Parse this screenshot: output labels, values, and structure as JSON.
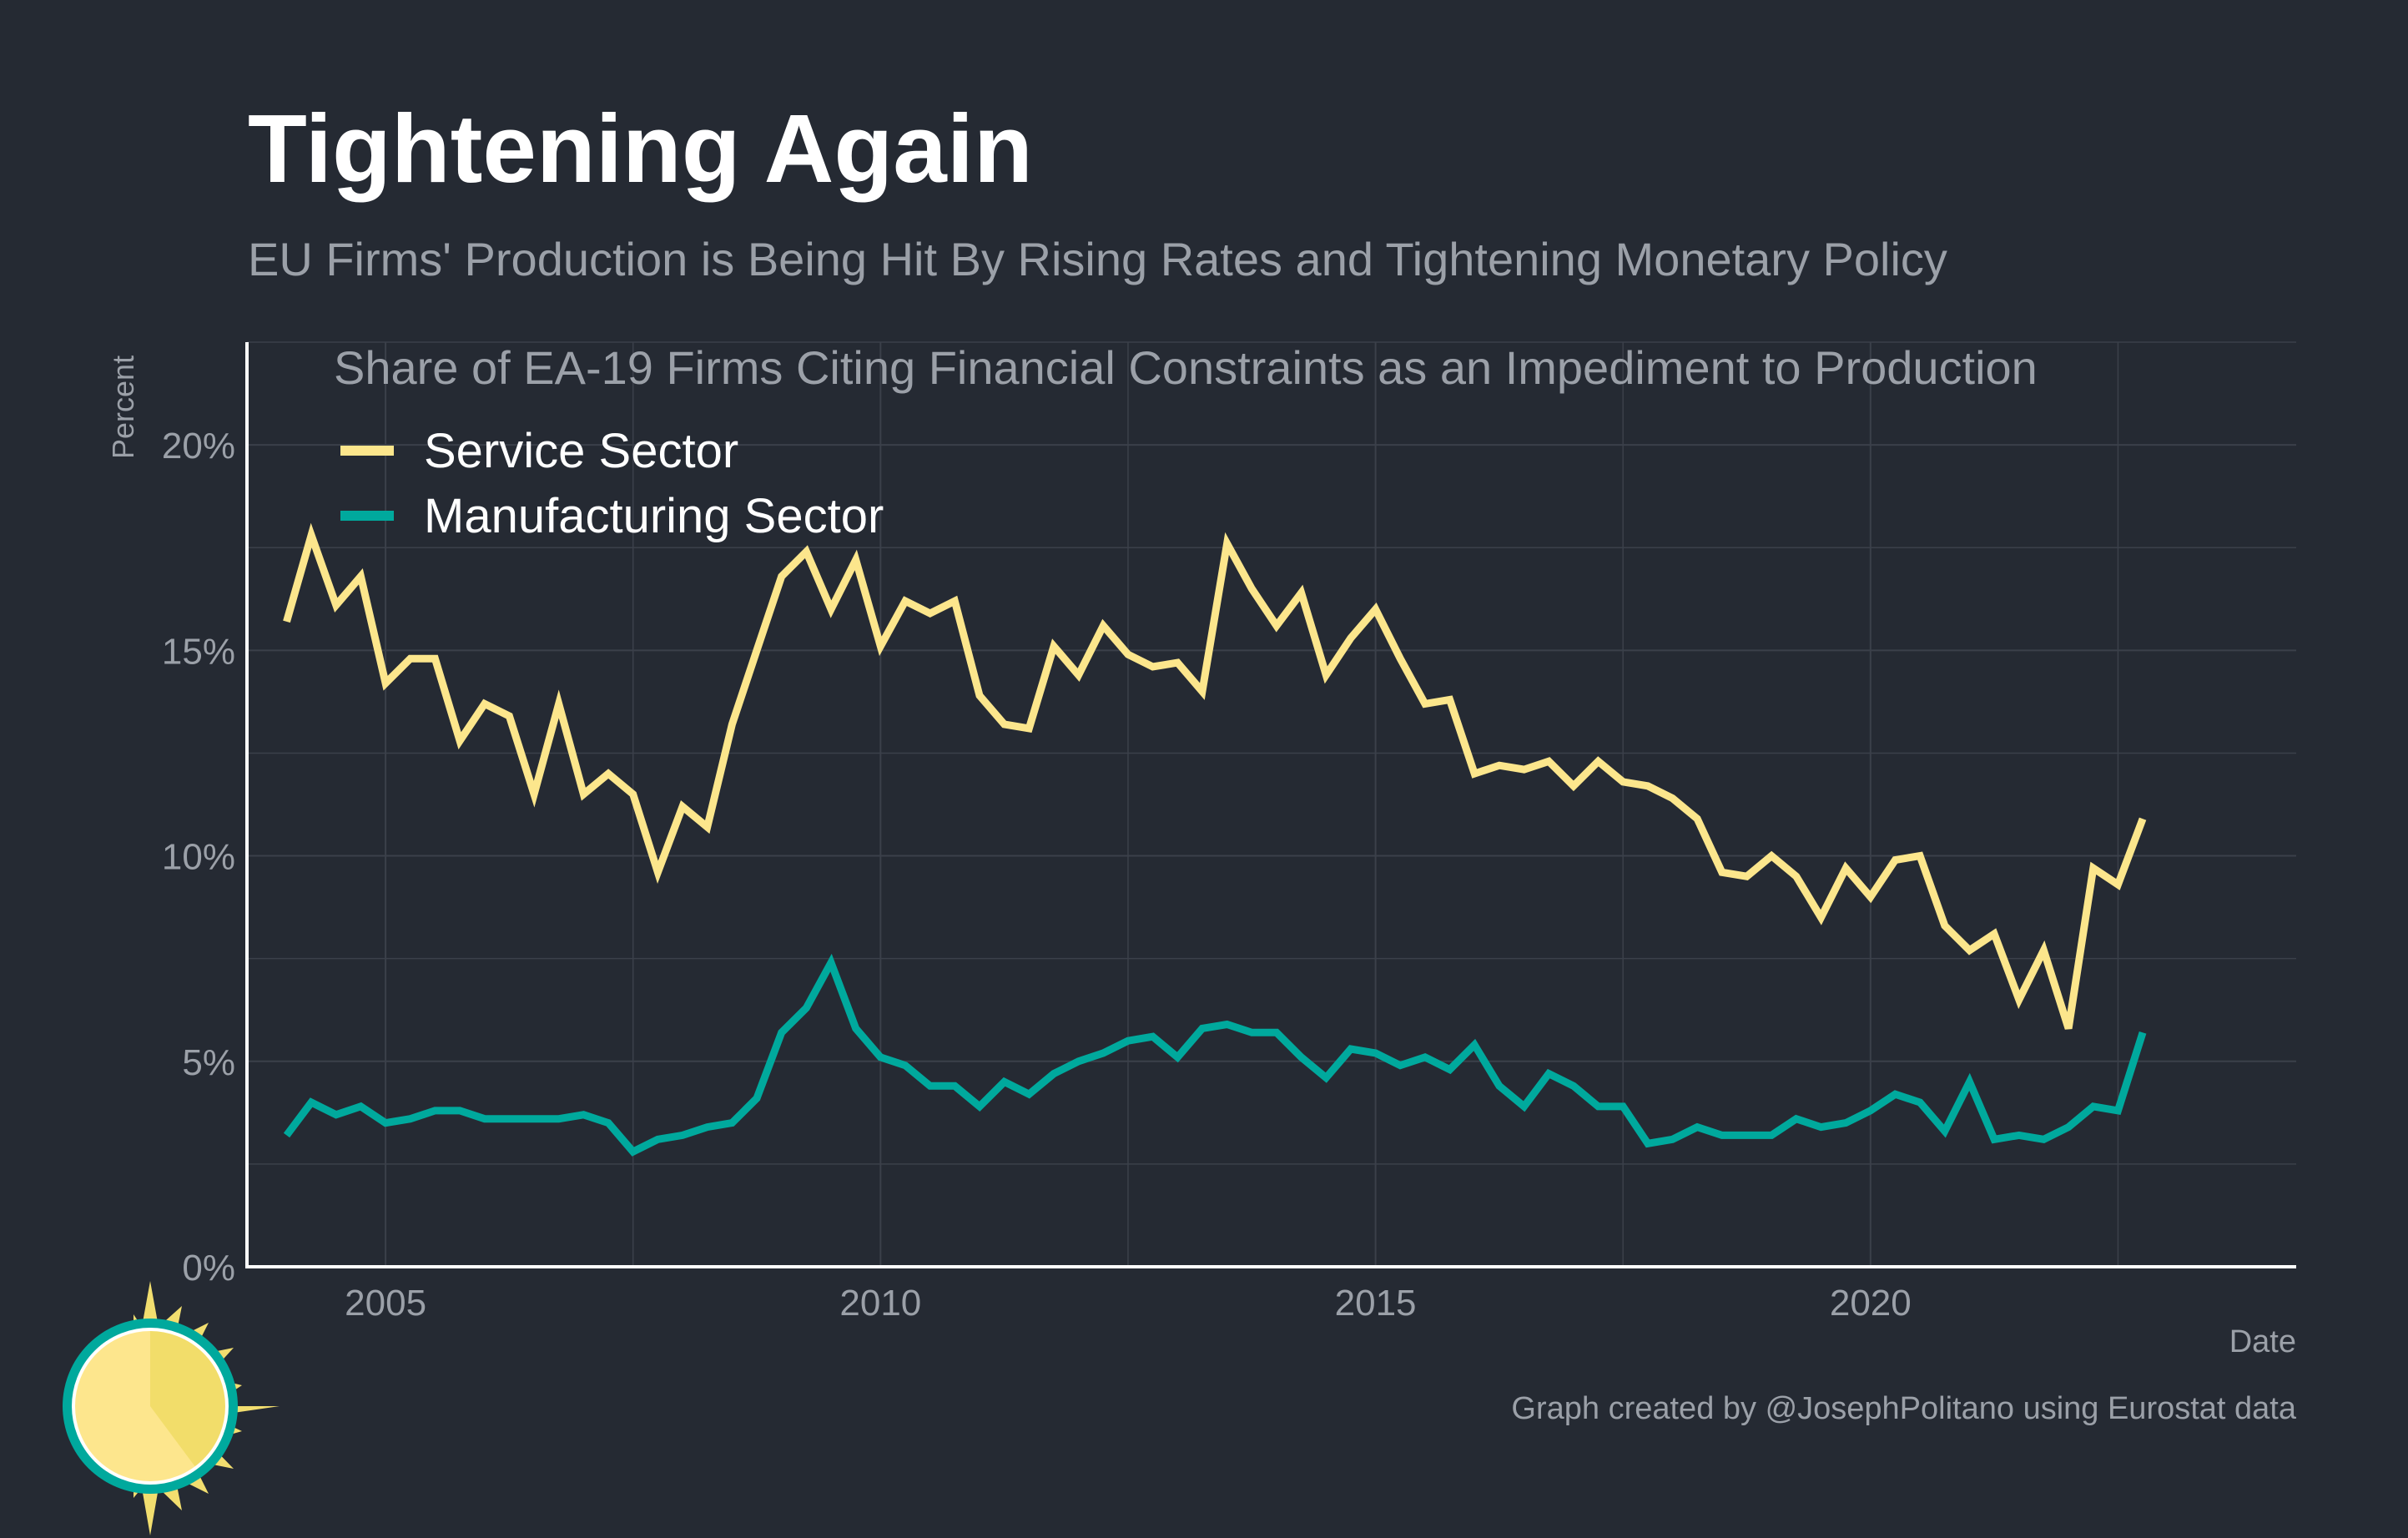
{
  "title": "Tightening Again",
  "subtitle": "EU Firms' Production is Being Hit By Rising Rates and Tightening Monetary Policy",
  "caption": "Graph created by @JosephPolitano using Eurostat data",
  "colors": {
    "background": "#252a33",
    "grid": "#3b404a",
    "axis": "#ffffff",
    "service": "#fce68c",
    "manufacturing": "#00a99d"
  },
  "chart_data": {
    "type": "line",
    "title": "Share of EA-19 Firms Citing Financial Constraints as an Impediment to Production",
    "xlabel": "Date",
    "ylabel": "Percent",
    "xlim": [
      2003.6,
      2024.3
    ],
    "ylim": [
      0,
      22.5
    ],
    "x_ticks": [
      2005,
      2010,
      2015,
      2020
    ],
    "x_tick_labels": [
      "2005",
      "2010",
      "2015",
      "2020"
    ],
    "y_ticks": [
      0,
      5,
      10,
      15,
      20
    ],
    "y_tick_labels": [
      "0%",
      "5%",
      "10%",
      "15%",
      "20%"
    ],
    "grid": true,
    "legend_position": "top-left",
    "x": [
      2004.0,
      2004.25,
      2004.5,
      2004.75,
      2005.0,
      2005.25,
      2005.5,
      2005.75,
      2006.0,
      2006.25,
      2006.5,
      2006.75,
      2007.0,
      2007.25,
      2007.5,
      2007.75,
      2008.0,
      2008.25,
      2008.5,
      2008.75,
      2009.0,
      2009.25,
      2009.5,
      2009.75,
      2010.0,
      2010.25,
      2010.5,
      2010.75,
      2011.0,
      2011.25,
      2011.5,
      2011.75,
      2012.0,
      2012.25,
      2012.5,
      2012.75,
      2013.0,
      2013.25,
      2013.5,
      2013.75,
      2014.0,
      2014.25,
      2014.5,
      2014.75,
      2015.0,
      2015.25,
      2015.5,
      2015.75,
      2016.0,
      2016.25,
      2016.5,
      2016.75,
      2017.0,
      2017.25,
      2017.5,
      2017.75,
      2018.0,
      2018.25,
      2018.5,
      2018.75,
      2019.0,
      2019.25,
      2019.5,
      2019.75,
      2020.0,
      2020.25,
      2020.5,
      2020.75,
      2021.0,
      2021.25,
      2021.5,
      2021.75,
      2022.0,
      2022.25,
      2022.5,
      2022.75
    ],
    "series": [
      {
        "name": "Service Sector",
        "color": "#fce68c",
        "values": [
          15.7,
          17.8,
          16.1,
          16.8,
          14.2,
          14.8,
          14.8,
          12.8,
          13.7,
          13.4,
          11.5,
          13.7,
          11.5,
          12.0,
          11.5,
          9.6,
          11.2,
          10.7,
          13.2,
          15.0,
          16.8,
          17.4,
          16.0,
          17.2,
          15.1,
          16.2,
          15.9,
          16.2,
          13.9,
          13.2,
          13.1,
          15.1,
          14.4,
          15.6,
          14.9,
          14.6,
          14.7,
          14.0,
          17.6,
          16.5,
          15.6,
          16.4,
          14.4,
          15.3,
          16.0,
          14.8,
          13.7,
          13.8,
          12.0,
          12.2,
          12.1,
          12.3,
          11.7,
          12.3,
          11.8,
          11.7,
          11.4,
          10.9,
          9.6,
          9.5,
          10.0,
          9.5,
          8.5,
          9.7,
          9.0,
          9.9,
          10.0,
          8.3,
          7.7,
          8.1,
          6.5,
          7.7,
          5.8,
          9.7,
          9.3,
          10.9
        ]
      },
      {
        "name": "Manufacturing Sector",
        "color": "#00a99d",
        "values": [
          3.2,
          4.0,
          3.7,
          3.9,
          3.5,
          3.6,
          3.8,
          3.8,
          3.6,
          3.6,
          3.6,
          3.6,
          3.7,
          3.5,
          2.8,
          3.1,
          3.2,
          3.4,
          3.5,
          4.1,
          5.7,
          6.3,
          7.4,
          5.8,
          5.1,
          4.9,
          4.4,
          4.4,
          3.9,
          4.5,
          4.2,
          4.7,
          5.0,
          5.2,
          5.5,
          5.6,
          5.1,
          5.8,
          5.9,
          5.7,
          5.7,
          5.1,
          4.6,
          5.3,
          5.2,
          4.9,
          5.1,
          4.8,
          5.4,
          4.4,
          3.9,
          4.7,
          4.4,
          3.9,
          3.9,
          3.0,
          3.1,
          3.4,
          3.2,
          3.2,
          3.2,
          3.6,
          3.4,
          3.5,
          3.8,
          4.2,
          4.0,
          3.3,
          4.5,
          3.1,
          3.2,
          3.1,
          3.4,
          3.9,
          3.8,
          5.7
        ]
      }
    ]
  }
}
